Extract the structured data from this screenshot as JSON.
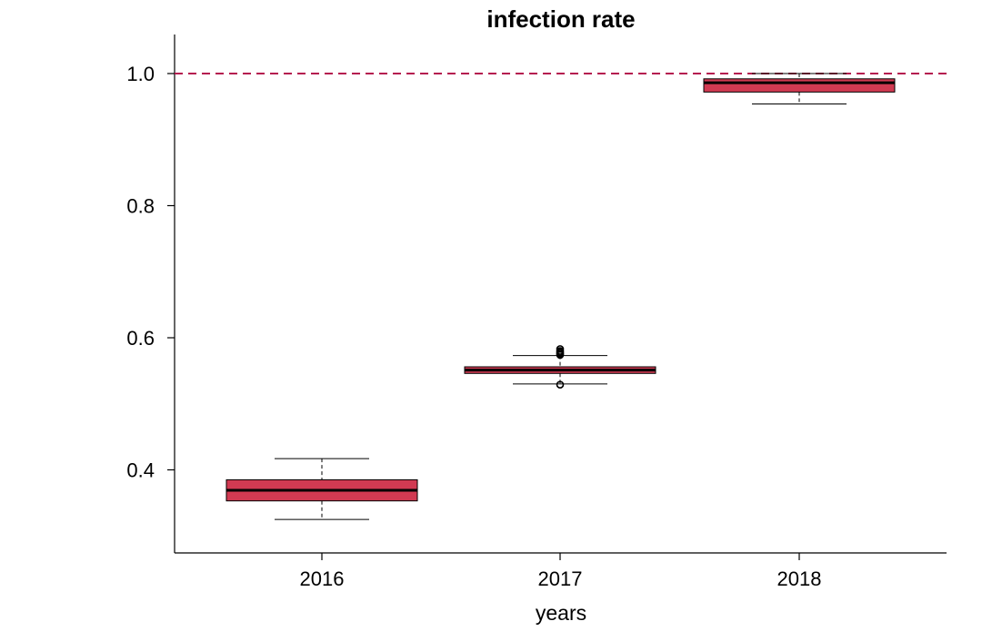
{
  "chart_data": {
    "type": "boxplot",
    "title": "infection rate",
    "xlabel": "years",
    "ylabel": "",
    "categories": [
      "2016",
      "2017",
      "2018"
    ],
    "ylim": [
      0.27,
      1.06
    ],
    "yticks": [
      0.4,
      0.6,
      0.8,
      1.0
    ],
    "ytick_labels": [
      "0.4",
      "0.6",
      "0.8",
      "1.0"
    ],
    "boxes": [
      {
        "category": "2016",
        "whisker_low": 0.325,
        "q1": 0.353,
        "median": 0.369,
        "q3": 0.385,
        "whisker_high": 0.417,
        "outliers": []
      },
      {
        "category": "2017",
        "whisker_low": 0.53,
        "q1": 0.546,
        "median": 0.551,
        "q3": 0.556,
        "whisker_high": 0.573,
        "outliers": [
          0.529,
          0.574,
          0.576,
          0.578,
          0.58,
          0.583
        ]
      },
      {
        "category": "2018",
        "whisker_low": 0.954,
        "q1": 0.972,
        "median": 0.986,
        "q3": 0.992,
        "whisker_high": 1.0,
        "outliers": []
      }
    ],
    "box_color": "#d13a52",
    "reference_line": {
      "y": 1.0,
      "color": "#b5174f",
      "style": "dashed"
    },
    "grid": false
  }
}
